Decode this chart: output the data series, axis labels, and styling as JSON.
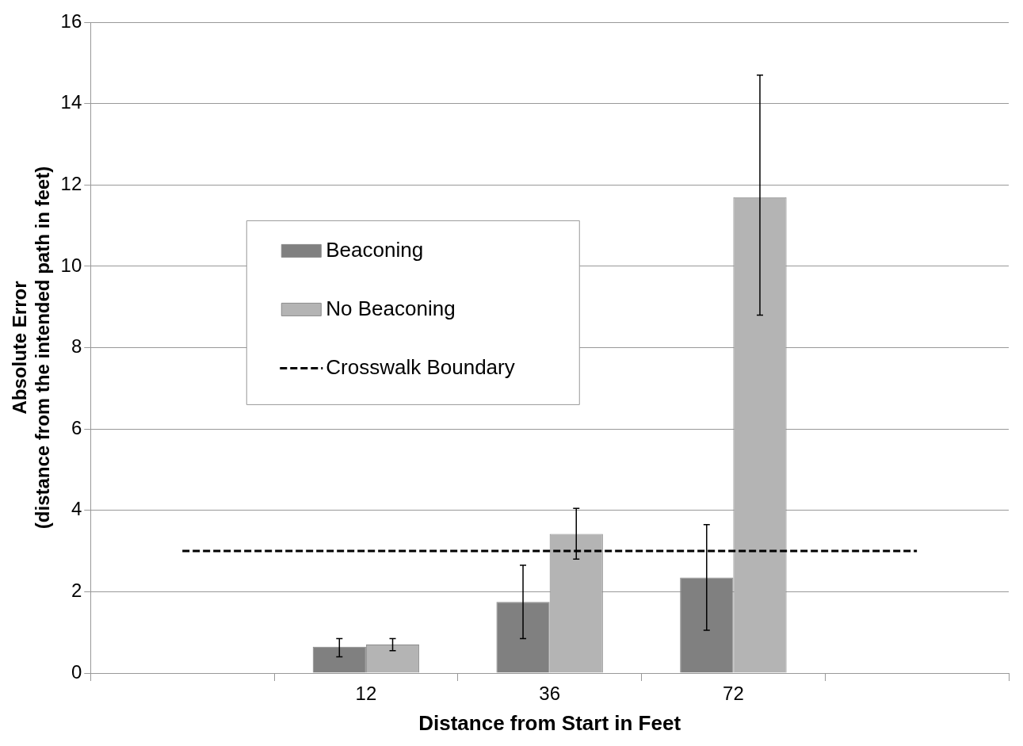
{
  "chart_data": {
    "type": "bar",
    "xlabel": "Distance from Start in Feet",
    "ylabel": "Absolute Error\n(distance from the intended path in feet)",
    "categories": [
      null,
      "12",
      "36",
      "72",
      null
    ],
    "series": [
      {
        "name": "Beaconing",
        "color": "#808080",
        "values": [
          null,
          0.65,
          1.75,
          2.35,
          null
        ],
        "errors": [
          null,
          [
            0.4,
            0.85
          ],
          [
            0.85,
            2.65
          ],
          [
            1.05,
            3.65
          ],
          null
        ]
      },
      {
        "name": "No Beaconing",
        "color": "#b4b4b4",
        "values": [
          null,
          0.7,
          3.42,
          11.7,
          null
        ],
        "errors": [
          null,
          [
            0.55,
            0.85
          ],
          [
            2.8,
            4.05
          ],
          [
            8.8,
            14.7
          ],
          null
        ]
      },
      {
        "name": "Crosswalk Boundary",
        "type": "line",
        "color": "#000000",
        "line_style": "dashed",
        "marker": "none",
        "values": [
          3,
          3,
          3,
          3,
          3
        ]
      }
    ],
    "ylim": [
      0,
      16
    ],
    "yticks": [
      0,
      2,
      4,
      6,
      8,
      10,
      12,
      14,
      16
    ],
    "grid": "y",
    "legend": "left"
  }
}
